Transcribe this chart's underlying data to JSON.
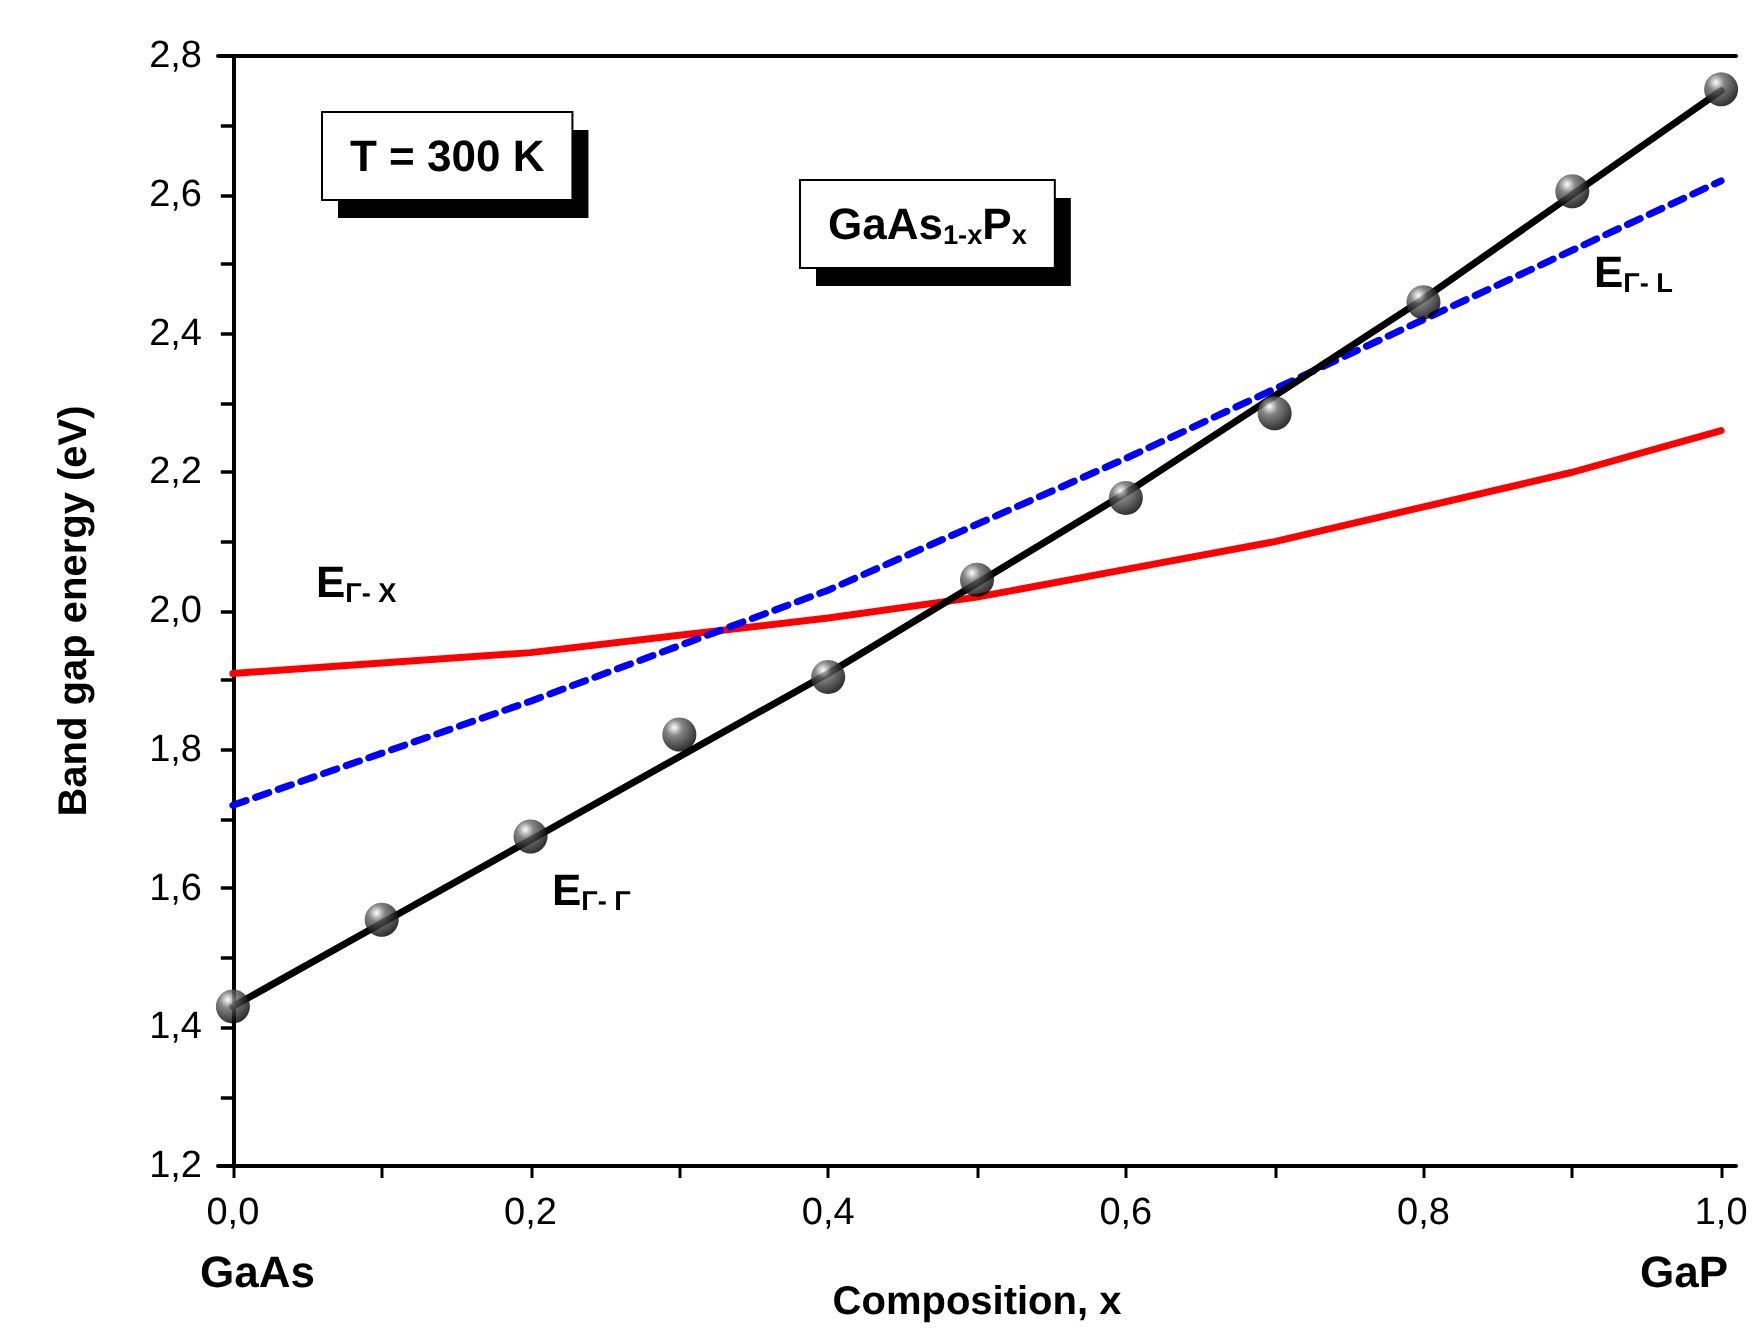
{
  "chart_data": {
    "type": "line",
    "xlabel": "Composition, x",
    "ylabel": "Band gap energy (eV)",
    "xlim": [
      -0.01,
      1.01
    ],
    "ylim": [
      1.2,
      2.8
    ],
    "xticks": [
      {
        "value": 0,
        "label": "0,0"
      },
      {
        "value": 0.1,
        "label": null
      },
      {
        "value": 0.2,
        "label": "0,2"
      },
      {
        "value": 0.3,
        "label": null
      },
      {
        "value": 0.4,
        "label": "0,4"
      },
      {
        "value": 0.5,
        "label": null
      },
      {
        "value": 0.6,
        "label": "0,6"
      },
      {
        "value": 0.7,
        "label": null
      },
      {
        "value": 0.8,
        "label": "0,8"
      },
      {
        "value": 0.9,
        "label": null
      },
      {
        "value": 1,
        "label": "1,0"
      }
    ],
    "yticks": [
      {
        "value": 1.2,
        "label": "1,2"
      },
      {
        "value": 1.3,
        "label": null
      },
      {
        "value": 1.4,
        "label": "1,4"
      },
      {
        "value": 1.5,
        "label": null
      },
      {
        "value": 1.6,
        "label": "1,6"
      },
      {
        "value": 1.7,
        "label": null
      },
      {
        "value": 1.8,
        "label": "1,8"
      },
      {
        "value": 1.9,
        "label": null
      },
      {
        "value": 2.0,
        "label": "2,0"
      },
      {
        "value": 2.1,
        "label": null
      },
      {
        "value": 2.2,
        "label": "2,2"
      },
      {
        "value": 2.3,
        "label": null
      },
      {
        "value": 2.4,
        "label": "2,4"
      },
      {
        "value": 2.5,
        "label": null
      },
      {
        "value": 2.6,
        "label": "2,6"
      },
      {
        "value": 2.7,
        "label": null
      },
      {
        "value": 2.8,
        "label": "2,8"
      }
    ],
    "grid": false,
    "series": [
      {
        "color": "#ff0000",
        "line_style": "solid",
        "marker": "none",
        "x": [
          0,
          0.1,
          0.2,
          0.3,
          0.4,
          0.5,
          0.6,
          0.7,
          0.8,
          0.9,
          1.0
        ],
        "values": [
          1.91,
          1.925,
          1.94,
          1.965,
          1.99,
          2.02,
          2.06,
          2.1,
          2.15,
          2.2,
          2.26
        ]
      },
      {
        "color": "#0000ff",
        "line_style": "dashed",
        "marker": "none",
        "x": [
          0,
          0.2,
          0.4,
          0.6,
          0.8,
          1.0
        ],
        "values": [
          1.72,
          1.87,
          2.03,
          2.22,
          2.42,
          2.62
        ]
      },
      {
        "color": "#000000",
        "line_style": "solid",
        "marker": "none",
        "x": [
          0,
          0.1,
          0.2,
          0.3,
          0.4,
          0.5,
          0.6,
          0.7,
          0.8,
          0.9,
          1.0
        ],
        "values": [
          1.43,
          1.55,
          1.67,
          1.79,
          1.91,
          2.04,
          2.17,
          2.31,
          2.45,
          2.6,
          2.75
        ]
      },
      {
        "type": "scatter",
        "color": "#000000",
        "marker": "circle",
        "x": [
          0,
          0.1,
          0.2,
          0.3,
          0.4,
          0.5,
          0.6,
          0.7,
          0.8,
          0.9,
          1.0
        ],
        "values": [
          1.43,
          1.555,
          1.675,
          1.822,
          1.905,
          2.045,
          2.163,
          2.285,
          2.445,
          2.605,
          2.752
        ]
      }
    ],
    "annotations": [
      "T = 300 K",
      "GaAs$_{1-x}$P$_{x}$",
      "E$_{Γ- X}$",
      "E$_{Γ- L}$",
      "E$_{Γ- Γ}$",
      "GaAs",
      "GaP"
    ]
  }
}
